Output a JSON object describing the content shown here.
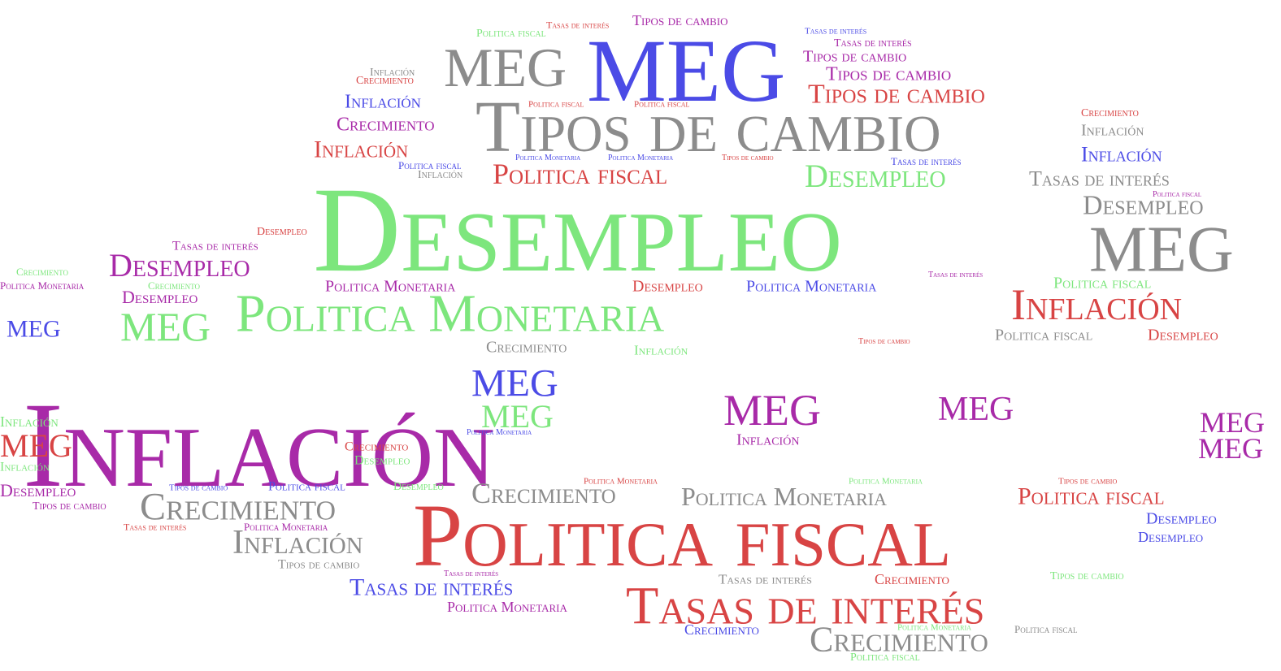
{
  "palette": {
    "gray": "#8c8c8c",
    "blue": "#4b4be6",
    "green": "#7de67d",
    "purple": "#a82aa8",
    "red": "#d84444"
  },
  "words": [
    {
      "text": "Tasas de interés",
      "color": "red"
    },
    {
      "text": "Tipos de cambio",
      "color": "purple"
    },
    {
      "text": "Politica fiscal",
      "color": "green"
    },
    {
      "text": "Tasas de interés",
      "color": "blue"
    },
    {
      "text": "Tasas de interés",
      "color": "purple"
    },
    {
      "text": "Tipos de cambio",
      "color": "purple"
    },
    {
      "text": "MEG",
      "color": "gray"
    },
    {
      "text": "MEG",
      "color": "blue"
    },
    {
      "text": "Inflación",
      "color": "gray"
    },
    {
      "text": "Crecimiento",
      "color": "red"
    },
    {
      "text": "Tipos de cambio",
      "color": "purple"
    },
    {
      "text": "Inflación",
      "color": "blue"
    },
    {
      "text": "Tipos de cambio",
      "color": "red"
    },
    {
      "text": "Politica fiscal",
      "color": "red"
    },
    {
      "text": "Politica fiscal",
      "color": "red"
    },
    {
      "text": "Tipos de cambio",
      "color": "gray"
    },
    {
      "text": "Crecimiento",
      "color": "purple"
    },
    {
      "text": "Crecimiento",
      "color": "red"
    },
    {
      "text": "Inflación",
      "color": "gray"
    },
    {
      "text": "Inflación",
      "color": "red"
    },
    {
      "text": "Inflación",
      "color": "blue"
    },
    {
      "text": "Politica Monetaria",
      "color": "blue"
    },
    {
      "text": "Politica Monetaria",
      "color": "blue"
    },
    {
      "text": "Tipos de cambio",
      "color": "red"
    },
    {
      "text": "Politica fiscal",
      "color": "blue"
    },
    {
      "text": "Politica fiscal",
      "color": "red"
    },
    {
      "text": "Inflación",
      "color": "gray"
    },
    {
      "text": "Desempleo",
      "color": "green"
    },
    {
      "text": "Tasas de interés",
      "color": "blue"
    },
    {
      "text": "Tasas de interés",
      "color": "gray"
    },
    {
      "text": "Politica fiscal",
      "color": "purple"
    },
    {
      "text": "Desempleo",
      "color": "gray"
    },
    {
      "text": "Desempleo",
      "color": "green"
    },
    {
      "text": "MEG",
      "color": "gray"
    },
    {
      "text": "Desempleo",
      "color": "red"
    },
    {
      "text": "Tasas de interés",
      "color": "purple"
    },
    {
      "text": "Crecimiento",
      "color": "green"
    },
    {
      "text": "Desempleo",
      "color": "purple"
    },
    {
      "text": "Politica Monetaria",
      "color": "purple"
    },
    {
      "text": "Crecimiento",
      "color": "green"
    },
    {
      "text": "Desempleo",
      "color": "purple"
    },
    {
      "text": "Politica Monetaria",
      "color": "purple"
    },
    {
      "text": "Politica Monetaria",
      "color": "green"
    },
    {
      "text": "Desempleo",
      "color": "red"
    },
    {
      "text": "Politica Monetaria",
      "color": "blue"
    },
    {
      "text": "Tasas de interés",
      "color": "purple"
    },
    {
      "text": "Politica fiscal",
      "color": "green"
    },
    {
      "text": "Inflación",
      "color": "red"
    },
    {
      "text": "MEG",
      "color": "blue"
    },
    {
      "text": "MEG",
      "color": "green"
    },
    {
      "text": "Politica fiscal",
      "color": "gray"
    },
    {
      "text": "Desempleo",
      "color": "red"
    },
    {
      "text": "Crecimiento",
      "color": "gray"
    },
    {
      "text": "Inflación",
      "color": "green"
    },
    {
      "text": "Tipos de cambio",
      "color": "red"
    },
    {
      "text": "Inflación",
      "color": "purple"
    },
    {
      "text": "MEG",
      "color": "blue"
    },
    {
      "text": "MEG",
      "color": "green"
    },
    {
      "text": "MEG",
      "color": "purple"
    },
    {
      "text": "MEG",
      "color": "purple"
    },
    {
      "text": "Politica Monetaria",
      "color": "blue"
    },
    {
      "text": "Inflación",
      "color": "purple"
    },
    {
      "text": "Inflación",
      "color": "green"
    },
    {
      "text": "MEG",
      "color": "red"
    },
    {
      "text": "Crecimiento",
      "color": "red"
    },
    {
      "text": "Desempleo",
      "color": "green"
    },
    {
      "text": "Inflación",
      "color": "green"
    },
    {
      "text": "MEG",
      "color": "purple"
    },
    {
      "text": "MEG",
      "color": "purple"
    },
    {
      "text": "Desempleo",
      "color": "purple"
    },
    {
      "text": "Tipos de cambio",
      "color": "blue"
    },
    {
      "text": "Politica fiscal",
      "color": "blue"
    },
    {
      "text": "Desempleo",
      "color": "green"
    },
    {
      "text": "Politica Monetaria",
      "color": "red"
    },
    {
      "text": "Politica Monetaria",
      "color": "green"
    },
    {
      "text": "Tipos de cambio",
      "color": "red"
    },
    {
      "text": "Tipos de cambio",
      "color": "purple"
    },
    {
      "text": "Crecimiento",
      "color": "gray"
    },
    {
      "text": "Crecimiento",
      "color": "gray"
    },
    {
      "text": "Politica Monetaria",
      "color": "gray"
    },
    {
      "text": "Politica fiscal",
      "color": "red"
    },
    {
      "text": "Desempleo",
      "color": "blue"
    },
    {
      "text": "Tasas de interés",
      "color": "red"
    },
    {
      "text": "Politica Monetaria",
      "color": "purple"
    },
    {
      "text": "Politica fiscal",
      "color": "red"
    },
    {
      "text": "Inflación",
      "color": "gray"
    },
    {
      "text": "Desempleo",
      "color": "blue"
    },
    {
      "text": "Tipos de cambio",
      "color": "gray"
    },
    {
      "text": "Tasas de interés",
      "color": "purple"
    },
    {
      "text": "Tasas de interés",
      "color": "gray"
    },
    {
      "text": "Crecimiento",
      "color": "red"
    },
    {
      "text": "Tipos de cambio",
      "color": "green"
    },
    {
      "text": "Tasas de interés",
      "color": "blue"
    },
    {
      "text": "Tasas de interés",
      "color": "red"
    },
    {
      "text": "Politica Monetaria",
      "color": "purple"
    },
    {
      "text": "Crecimiento",
      "color": "blue"
    },
    {
      "text": "Politica Monetaria",
      "color": "green"
    },
    {
      "text": "Politica fiscal",
      "color": "gray"
    },
    {
      "text": "Crecimiento",
      "color": "gray"
    },
    {
      "text": "Politica fiscal",
      "color": "green"
    },
    {
      "text": "Desempleo",
      "color": "green"
    },
    {
      "text": "Politica Monetaria",
      "color": "purple"
    },
    {
      "text": "Inflación",
      "color": "gray"
    },
    {
      "text": "Desempleo",
      "color": "purple"
    },
    {
      "text": "Crecimiento",
      "color": "gray"
    },
    {
      "text": "Politica fiscal",
      "color": "blue"
    },
    {
      "text": "Politica fiscal",
      "color": "blue"
    },
    {
      "text": "MEG",
      "color": "red"
    },
    {
      "text": "MEG",
      "color": "blue"
    },
    {
      "text": "Inflación",
      "color": "purple"
    },
    {
      "text": "Politica Monetaria",
      "color": "green"
    }
  ]
}
